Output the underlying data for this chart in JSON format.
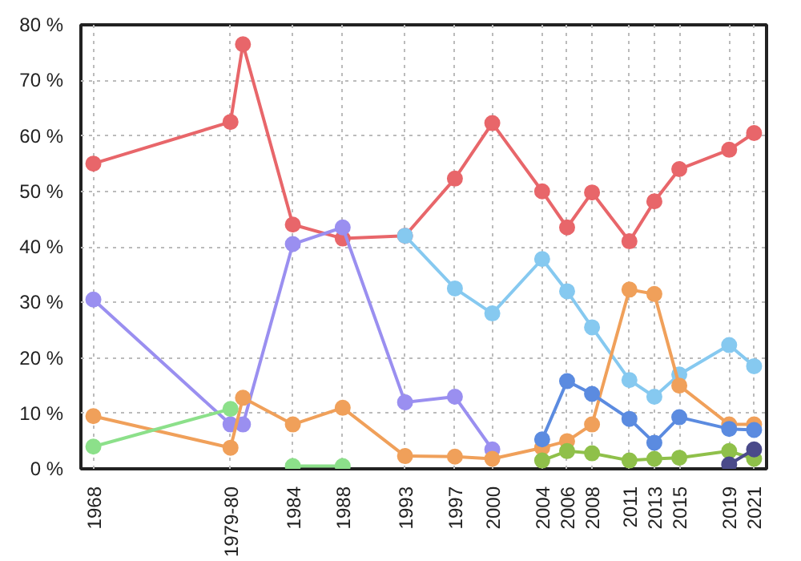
{
  "chart_data": {
    "type": "line",
    "marker": "circle",
    "grid": true,
    "xlim": [
      1967,
      2022
    ],
    "ylim": [
      0,
      80
    ],
    "xticks": [
      1968,
      {
        "value": 1979,
        "label": "1979-80"
      },
      1984,
      1988,
      1993,
      1997,
      2000,
      2004,
      2006,
      2008,
      2011,
      2013,
      2015,
      2019,
      2021
    ],
    "yticks": [
      {
        "value": 0,
        "label": "0 %"
      },
      {
        "value": 10,
        "label": "10 %"
      },
      {
        "value": 20,
        "label": "20 %"
      },
      {
        "value": 30,
        "label": "30 %"
      },
      {
        "value": 40,
        "label": "40 %"
      },
      {
        "value": 50,
        "label": "50 %"
      },
      {
        "value": 60,
        "label": "60 %"
      },
      {
        "value": 70,
        "label": "70 %"
      },
      {
        "value": 80,
        "label": "80 %"
      }
    ],
    "series": [
      {
        "color": "#e8666a",
        "x": [
          1968,
          1979,
          1980,
          1984,
          1988,
          1993,
          1997,
          2000,
          2004,
          2006,
          2008,
          2011,
          2013,
          2015,
          2019,
          2021
        ],
        "values": [
          55,
          62.5,
          76.5,
          44,
          41.5,
          42,
          52.3,
          62.3,
          50,
          43.5,
          49.8,
          41,
          48.2,
          54,
          57.5,
          60.5
        ]
      },
      {
        "color": "#9a8ff0",
        "x": [
          1968,
          1979,
          1980,
          1984,
          1988,
          1993,
          1997,
          2000
        ],
        "values": [
          30.5,
          8,
          8,
          40.5,
          43.5,
          12,
          13,
          3.5
        ]
      },
      {
        "color": "#86c9f0",
        "x": [
          1993,
          1997,
          2000,
          2004,
          2006,
          2008,
          2011,
          2013,
          2015,
          2019,
          2021
        ],
        "values": [
          42,
          32.5,
          28,
          37.8,
          32,
          25.5,
          16,
          13,
          17,
          22.3,
          18.5
        ]
      },
      {
        "color": "#f0a05a",
        "x": [
          1968,
          1979,
          1980,
          1984,
          1988,
          1993,
          1997,
          2000,
          2004,
          2006,
          2008,
          2011,
          2013,
          2015,
          2019,
          2021
        ],
        "values": [
          9.5,
          3.8,
          12.8,
          8,
          11,
          2.3,
          2.2,
          1.8,
          3.8,
          5,
          8,
          32.3,
          31.5,
          15,
          8,
          8
        ]
      },
      {
        "color": "#8ce08a",
        "x": [
          1968,
          1979,
          1980,
          1984,
          1988
        ],
        "values": [
          4,
          10.8,
          null,
          0.5,
          0.5
        ]
      },
      {
        "color": "#5b8be0",
        "x": [
          2004,
          2006,
          2008,
          2011,
          2013,
          2015,
          2019,
          2021
        ],
        "values": [
          5.3,
          15.8,
          13.5,
          9,
          4.7,
          9.3,
          7.2,
          7
        ]
      },
      {
        "color": "#8fc04a",
        "x": [
          2004,
          2006,
          2008,
          2011,
          2013,
          2015,
          2019,
          2021
        ],
        "values": [
          1.5,
          3.2,
          2.8,
          1.5,
          1.8,
          2,
          3.2,
          1.8
        ]
      },
      {
        "color": "#4a4a8a",
        "x": [
          2019,
          2021
        ],
        "values": [
          0.8,
          3.5
        ]
      }
    ]
  }
}
